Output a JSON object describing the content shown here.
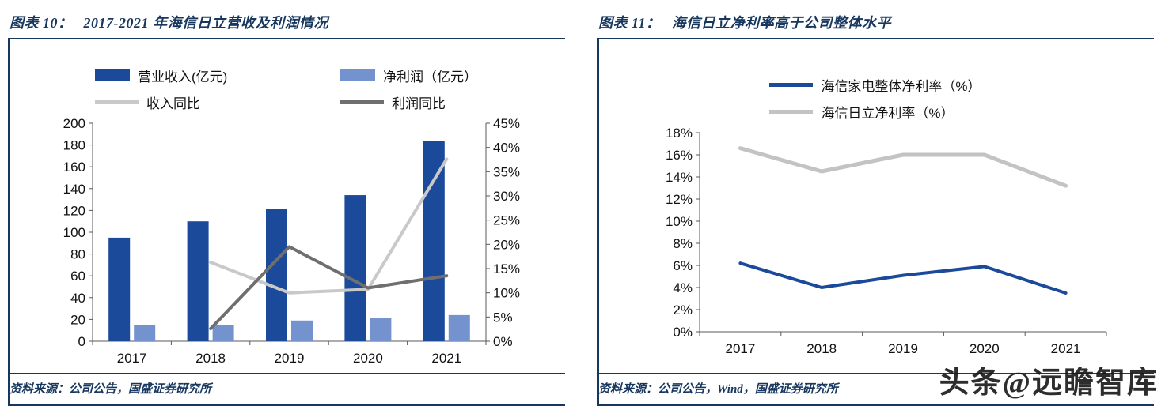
{
  "page": {
    "watermark": "头条@远瞻智库"
  },
  "colors": {
    "accent_navy": "#17375E",
    "bar_dark_blue": "#1B4A9B",
    "bar_light_blue": "#7493CE",
    "line_light_gray": "#C9C9C9",
    "line_dark_gray": "#6F6F6F"
  },
  "panels": [
    {
      "figure_label": "图表 10：",
      "source_label": "资料来源：",
      "source": "公司公告，国盛证券研究所"
    },
    {
      "figure_label": "图表 11：",
      "source_label": "资料来源：",
      "source": "公司公告，Wind，国盛证券研究所"
    }
  ],
  "chart_data": [
    {
      "type": "bar",
      "subtype": "bar-line-combo",
      "title": "2017-2021 年海信日立营收及利润情况",
      "categories": [
        "2017",
        "2018",
        "2019",
        "2020",
        "2021"
      ],
      "series": [
        {
          "name": "营业收入(亿元)",
          "kind": "bar",
          "axis": "left",
          "color": "#1B4A9B",
          "values": [
            95,
            110,
            121,
            134,
            184
          ]
        },
        {
          "name": "净利润（亿元）",
          "kind": "bar",
          "axis": "left",
          "color": "#7493CE",
          "values": [
            15,
            15,
            19,
            21,
            24
          ]
        },
        {
          "name": "收入同比",
          "kind": "line",
          "axis": "right",
          "color": "#C9C9C9",
          "width": 4,
          "values": [
            null,
            16.3,
            10.0,
            10.7,
            37.6
          ]
        },
        {
          "name": "利润同比",
          "kind": "line",
          "axis": "right",
          "color": "#6F6F6F",
          "width": 4,
          "values": [
            null,
            2.6,
            19.5,
            11.0,
            13.5
          ]
        }
      ],
      "left_axis": {
        "min": 0,
        "max": 200,
        "step": 20,
        "ticks": [
          "0",
          "20",
          "40",
          "60",
          "80",
          "100",
          "120",
          "140",
          "160",
          "180",
          "200"
        ]
      },
      "right_axis": {
        "min": 0,
        "max": 45,
        "step": 5,
        "ticks": [
          "0%",
          "5%",
          "10%",
          "15%",
          "20%",
          "25%",
          "30%",
          "35%",
          "40%",
          "45%"
        ]
      },
      "legend_position": "top",
      "grid": false
    },
    {
      "type": "line",
      "title": "海信日立净利率高于公司整体水平",
      "categories": [
        "2017",
        "2018",
        "2019",
        "2020",
        "2021"
      ],
      "series": [
        {
          "name": "海信家电整体净利率（%）",
          "kind": "line",
          "axis": "left",
          "color": "#1B4A9B",
          "width": 4,
          "values": [
            6.2,
            4.0,
            5.1,
            5.9,
            3.5
          ]
        },
        {
          "name": "海信日立净利率（%）",
          "kind": "line",
          "axis": "left",
          "color": "#C3C3C3",
          "width": 5,
          "values": [
            16.6,
            14.5,
            16.0,
            16.0,
            13.2
          ]
        }
      ],
      "left_axis": {
        "min": 0,
        "max": 18,
        "step": 2,
        "ticks": [
          "0%",
          "2%",
          "4%",
          "6%",
          "8%",
          "10%",
          "12%",
          "14%",
          "16%",
          "18%"
        ]
      },
      "legend_position": "top",
      "grid": false
    }
  ]
}
